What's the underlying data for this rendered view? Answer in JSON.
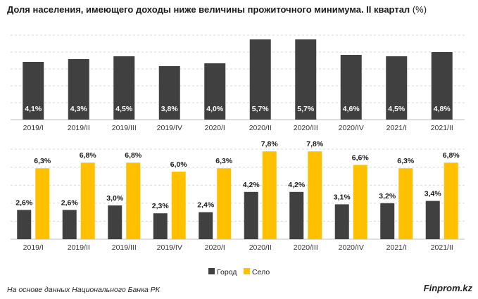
{
  "title": {
    "main": "Доля населения, имеющего доходы ниже величины прожиточного минимума. II квартал",
    "unit": "(%)"
  },
  "chart_data": [
    {
      "type": "bar",
      "title": "Доля населения, имеющего доходы ниже величины прожиточного минимума. II квартал (%)",
      "categories": [
        "2019/I",
        "2019/II",
        "2019/III",
        "2019/IV",
        "2020/I",
        "2020/II",
        "2020/III",
        "2020/IV",
        "2021/I",
        "2021/II"
      ],
      "values": [
        4.1,
        4.3,
        4.5,
        3.8,
        4.0,
        5.7,
        5.7,
        4.6,
        4.5,
        4.8
      ],
      "labels": [
        "4,1%",
        "4,3%",
        "4,5%",
        "3,8%",
        "4,0%",
        "5,7%",
        "5,7%",
        "4,6%",
        "4,5%",
        "4,8%"
      ],
      "color": "#404040",
      "ylim": [
        0,
        6.0
      ],
      "grid": true
    },
    {
      "type": "bar",
      "categories": [
        "2019/I",
        "2019/II",
        "2019/III",
        "2019/IV",
        "2020/I",
        "2020/II",
        "2020/III",
        "2020/IV",
        "2021/I",
        "2021/II"
      ],
      "series": [
        {
          "name": "Город",
          "color": "#404040",
          "values": [
            2.6,
            2.6,
            3.0,
            2.3,
            2.4,
            4.2,
            4.2,
            3.1,
            3.2,
            3.4
          ],
          "labels": [
            "2,6%",
            "2,6%",
            "3,0%",
            "2,3%",
            "2,4%",
            "4,2%",
            "4,2%",
            "3,1%",
            "3,2%",
            "3,4%"
          ]
        },
        {
          "name": "Село",
          "color": "#ffc000",
          "values": [
            6.3,
            6.8,
            6.8,
            6.0,
            6.3,
            7.8,
            7.8,
            6.6,
            6.3,
            6.8
          ],
          "labels": [
            "6,3%",
            "6,8%",
            "6,8%",
            "6,0%",
            "6,3%",
            "7,8%",
            "7,8%",
            "6,6%",
            "6,3%",
            "6,8%"
          ]
        }
      ],
      "ylim": [
        0,
        8.0
      ],
      "grid": true,
      "legend": "bottom"
    }
  ],
  "footer": {
    "source": "На основе данных Национального Банка РК",
    "brand": "Finprom.kz"
  }
}
